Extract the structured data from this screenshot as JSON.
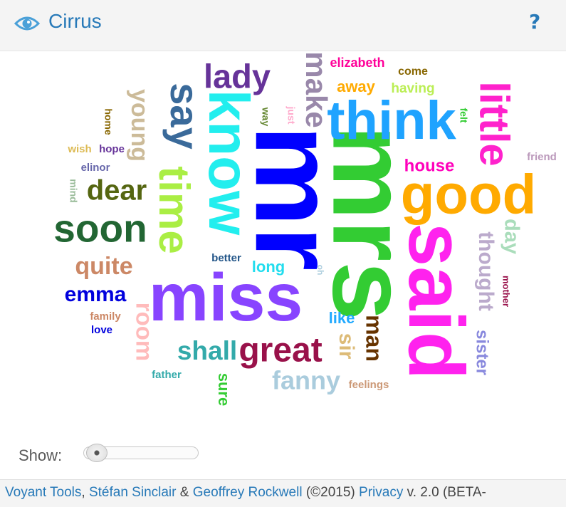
{
  "header": {
    "title": "Cirrus",
    "help_label": "?",
    "icon": "eye-icon"
  },
  "cloud": {
    "words": [
      {
        "term": "mr",
        "color": "#0000ff"
      },
      {
        "term": "mrs",
        "color": "#33cc33"
      },
      {
        "term": "miss",
        "color": "#8844ff"
      },
      {
        "term": "said",
        "color": "#ff22ee"
      },
      {
        "term": "think",
        "color": "#1fa3ff"
      },
      {
        "term": "know",
        "color": "#22eeee"
      },
      {
        "term": "good",
        "color": "#ffaa00"
      },
      {
        "term": "say",
        "color": "#3a6a9a"
      },
      {
        "term": "time",
        "color": "#aaee44"
      },
      {
        "term": "little",
        "color": "#ff22cc"
      },
      {
        "term": "soon",
        "color": "#226633"
      },
      {
        "term": "lady",
        "color": "#663399"
      },
      {
        "term": "great",
        "color": "#99114a"
      },
      {
        "term": "make",
        "color": "#9988aa"
      },
      {
        "term": "dear",
        "color": "#556611"
      },
      {
        "term": "young",
        "color": "#ccbb99"
      },
      {
        "term": "shall",
        "color": "#33aaaa"
      },
      {
        "term": "emma",
        "color": "#0000dd"
      },
      {
        "term": "quite",
        "color": "#cc8866"
      },
      {
        "term": "fanny",
        "color": "#aaccdd"
      },
      {
        "term": "room",
        "color": "#ffbbbb"
      },
      {
        "term": "thought",
        "color": "#bbaacc"
      },
      {
        "term": "man",
        "color": "#663300"
      },
      {
        "term": "house",
        "color": "#ff00bb"
      },
      {
        "term": "day",
        "color": "#aaddbb"
      },
      {
        "term": "sir",
        "color": "#ddbb77"
      },
      {
        "term": "away",
        "color": "#ffaa00"
      },
      {
        "term": "sister",
        "color": "#8888dd"
      },
      {
        "term": "long",
        "color": "#22ddee"
      },
      {
        "term": "elizabeth",
        "color": "#ff0099"
      },
      {
        "term": "having",
        "color": "#bbee55"
      },
      {
        "term": "like",
        "color": "#22aaff"
      },
      {
        "term": "sure",
        "color": "#33cc33"
      },
      {
        "term": "come",
        "color": "#886600"
      },
      {
        "term": "family",
        "color": "#cc8866"
      },
      {
        "term": "feelings",
        "color": "#cc9977"
      },
      {
        "term": "father",
        "color": "#33aaaa"
      },
      {
        "term": "better",
        "color": "#225588"
      },
      {
        "term": "elinor",
        "color": "#6666aa"
      },
      {
        "term": "love",
        "color": "#0000dd"
      },
      {
        "term": "wish",
        "color": "#ddbb55"
      },
      {
        "term": "hope",
        "color": "#663399"
      },
      {
        "term": "home",
        "color": "#886600"
      },
      {
        "term": "mind",
        "color": "#99bb99"
      },
      {
        "term": "way",
        "color": "#668833"
      },
      {
        "term": "just",
        "color": "#ffaacc"
      },
      {
        "term": "felt",
        "color": "#33cc33"
      },
      {
        "term": "friend",
        "color": "#bb99bb"
      },
      {
        "term": "mother",
        "color": "#99114a"
      },
      {
        "term": "oh",
        "color": "#aaccdd"
      }
    ]
  },
  "controls": {
    "show_label": "Show:"
  },
  "footer": {
    "tools": "Voyant Tools",
    "sep1": ", ",
    "author1": "Stéfan Sinclair",
    "sep2": " & ",
    "author2": "Geoffrey Rockwell",
    "copyright": " (©2015) ",
    "privacy": "Privacy",
    "version": " v. 2.0 (BETA-"
  }
}
